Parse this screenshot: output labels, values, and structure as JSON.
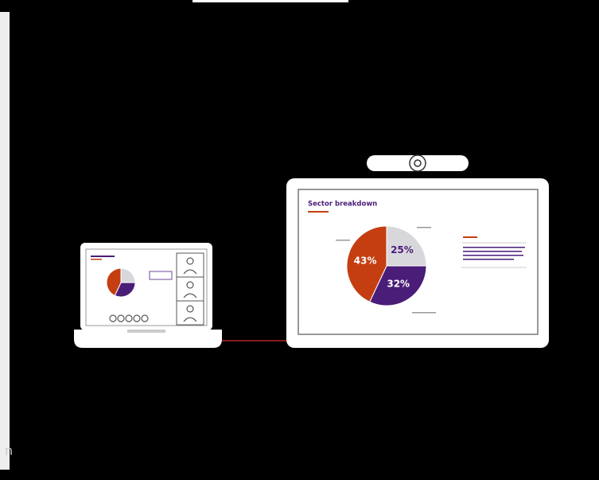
{
  "chart_data": {
    "type": "pie",
    "title": "Sector breakdown",
    "values": [
      25,
      32,
      43
    ],
    "value_labels": [
      "25%",
      "32%",
      "43%"
    ],
    "colors": [
      "#d8d8dc",
      "#4a1d78",
      "#c43e12"
    ]
  },
  "footer_fragment": "n"
}
